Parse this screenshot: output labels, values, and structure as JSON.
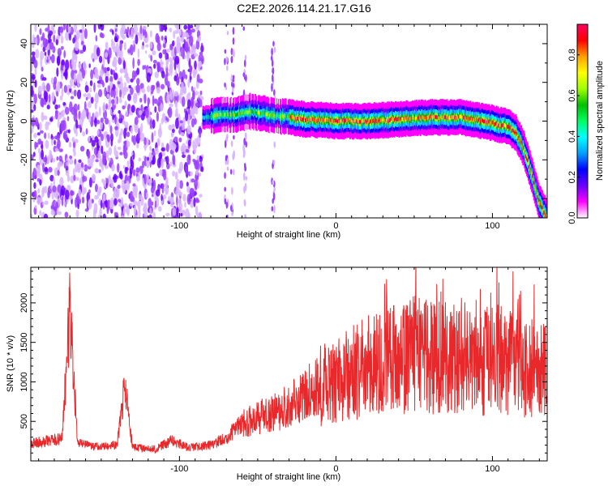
{
  "title": "C2E2.2026.114.21.17.G16",
  "chart_data": [
    {
      "type": "heatmap",
      "name": "spectrogram",
      "xlabel": "Height of straight line (km)",
      "ylabel": "Frequency (Hz)",
      "xlim": [
        -195,
        135
      ],
      "ylim": [
        -50,
        50
      ],
      "xticks": [
        -100,
        0,
        100
      ],
      "xtick_labels": [
        "-100",
        "0",
        "100"
      ],
      "yticks": [
        -40,
        -20,
        0,
        20,
        40
      ],
      "ytick_labels": [
        "-40",
        "-20",
        "0",
        "20",
        "40"
      ],
      "ridge": {
        "x": [
          -85,
          -75,
          -65,
          -55,
          -40,
          -20,
          0,
          20,
          40,
          60,
          80,
          100,
          110,
          115,
          120,
          125,
          130,
          135
        ],
        "y": [
          2,
          3,
          3,
          5,
          3,
          1,
          0,
          0,
          1,
          2,
          2,
          -1,
          -3,
          -6,
          -14,
          -27,
          -42,
          -50
        ]
      },
      "noise_region_x": [
        -195,
        -85
      ],
      "colorbar": {
        "label": "Normalized spectral amplitude",
        "range": [
          0,
          0.95
        ],
        "ticks": [
          0.0,
          0.2,
          0.4,
          0.6,
          0.8
        ],
        "tick_labels": [
          "0.0",
          "0.2",
          "0.4",
          "0.6",
          "0.8"
        ],
        "colormap": [
          "#ffffff",
          "#ff00ff",
          "#6a00ff",
          "#0000ff",
          "#00a0ff",
          "#00ffff",
          "#00ff60",
          "#00c000",
          "#a0ff00",
          "#ffff00",
          "#ffa000",
          "#ff0000",
          "#ff0060"
        ]
      }
    },
    {
      "type": "line",
      "name": "snr",
      "xlabel": "Height of straight line (km)",
      "ylabel": "SNR (10 * v/v)",
      "xlim": [
        -195,
        135
      ],
      "ylim": [
        0,
        2450
      ],
      "xticks": [
        -100,
        0,
        100
      ],
      "xtick_labels": [
        "-100",
        "0",
        "100"
      ],
      "yticks": [
        500,
        1000,
        1500,
        2000
      ],
      "ytick_labels": [
        "500",
        "1000",
        "1500",
        "2000"
      ],
      "color": "#e8282a",
      "envelope": {
        "x": [
          -195,
          -185,
          -175,
          -170,
          -165,
          -155,
          -140,
          -135,
          -130,
          -115,
          -105,
          -95,
          -80,
          -70,
          -60,
          -50,
          -40,
          -30,
          -20,
          -10,
          0,
          10,
          20,
          30,
          40,
          50,
          60,
          70,
          80,
          90,
          100,
          110,
          120,
          130,
          135
        ],
        "y": [
          220,
          250,
          280,
          1900,
          220,
          180,
          200,
          950,
          170,
          150,
          260,
          170,
          200,
          300,
          480,
          550,
          600,
          700,
          850,
          950,
          1000,
          1100,
          1200,
          1200,
          1300,
          1350,
          1300,
          1350,
          1250,
          1200,
          1300,
          1250,
          1200,
          1150,
          1150
        ]
      }
    }
  ]
}
